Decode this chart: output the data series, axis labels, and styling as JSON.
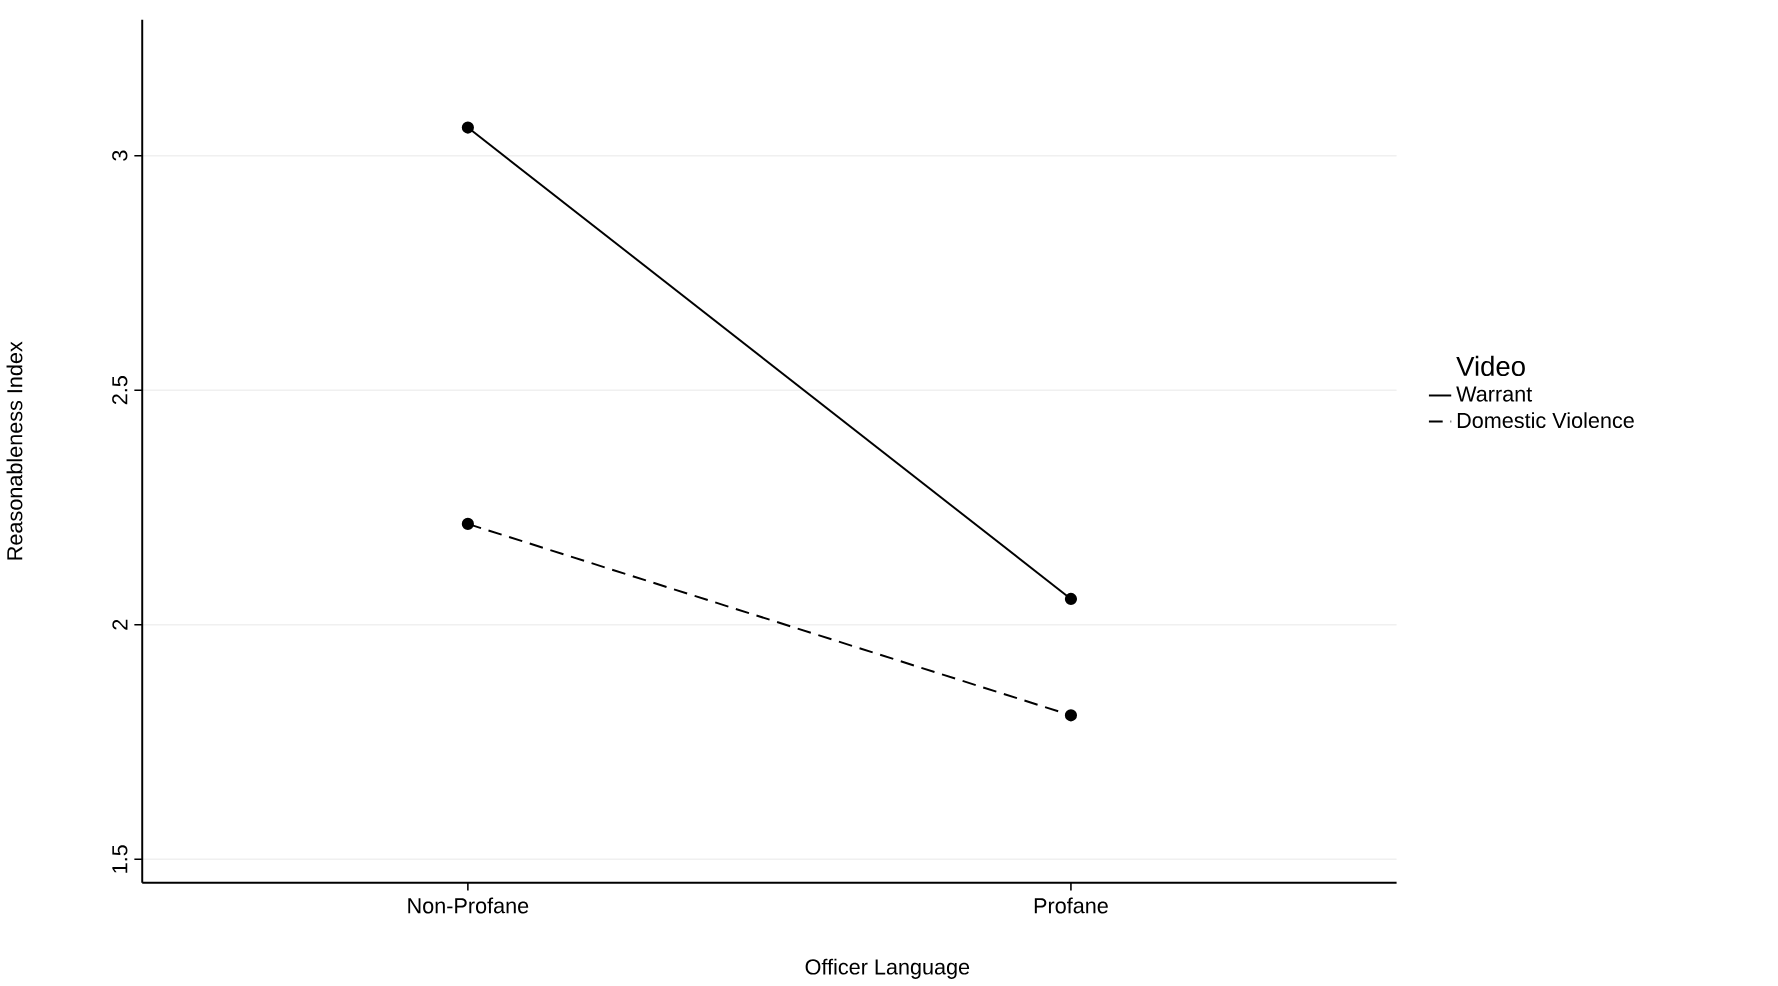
{
  "chart_data": {
    "type": "line",
    "xlabel": "Officer Language",
    "ylabel": "Reasonableness Index",
    "legend_title": "Video",
    "categories": [
      "Non-Profane",
      "Profane"
    ],
    "series": [
      {
        "name": "Warrant",
        "color": "#000000",
        "values": [
          3.06,
          2.055
        ],
        "line_style": "solid"
      },
      {
        "name": "Domestic Violence",
        "color": "#000000",
        "values": [
          2.215,
          1.807
        ],
        "line_style": "dashed"
      }
    ],
    "ylim": [
      1.45,
      3.29
    ],
    "yticks": [
      1.5,
      2,
      2.5,
      3
    ],
    "grid": "y",
    "legend": "right",
    "marker": "circle"
  }
}
